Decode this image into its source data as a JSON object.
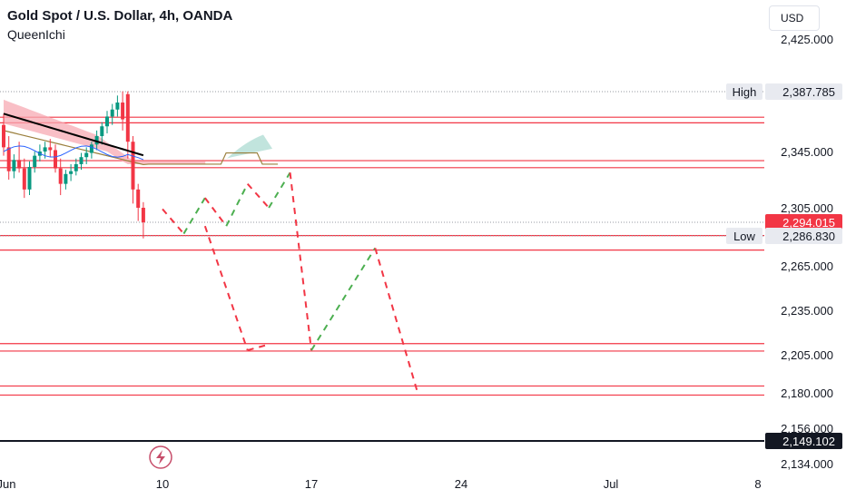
{
  "header": {
    "title": "Gold Spot / U.S. Dollar, 4h, OANDA",
    "indicator": "QueenIchi",
    "currency": "USD"
  },
  "colors": {
    "bull": "#089981",
    "bear": "#f23645",
    "cloud_red": "#f7a9b3",
    "cloud_green": "#a6d8cf",
    "sr_lines": "#f23645",
    "projection_up": "#4caf50",
    "projection_down": "#f23645",
    "ma_fast": "#000000",
    "ma_slow": "#2962ff",
    "kijun": "#9a7f3c"
  },
  "chart_data": {
    "type": "candlestick",
    "symbol": "Gold Spot / U.S. Dollar",
    "timeframe": "4h",
    "y_ticks": [
      "2,425.000",
      "2,345.000",
      "2,305.000",
      "2,265.000",
      "2,235.000",
      "2,205.000",
      "2,180.000",
      "2,156.000",
      "2,134.000"
    ],
    "y_tick_values": [
      2425,
      2345,
      2305,
      2265,
      2235,
      2205,
      2180,
      2156,
      2134
    ],
    "x_ticks": [
      "Jun",
      "10",
      "17",
      "24",
      "Jul",
      "8"
    ],
    "ylim": [
      2125,
      2440
    ],
    "badges": [
      {
        "label": "High",
        "value_text": "2,387.785",
        "value": 2387.785,
        "style": "light"
      },
      {
        "label": "",
        "value_text": "2,294.015",
        "value": 2294.015,
        "style": "red"
      },
      {
        "label": "Low",
        "value_text": "2,286.830",
        "value": 2286.83,
        "style": "light"
      },
      {
        "label": "",
        "value_text": "2,149.102",
        "value": 2149.102,
        "style": "dark"
      }
    ],
    "price_levels": [
      {
        "top": 2369.5,
        "bottom": 2365.5
      },
      {
        "top": 2338.5,
        "bottom": 2333.5
      },
      {
        "top": 2287.0,
        "bottom": 2276.5
      },
      {
        "top": 2212.5,
        "bottom": 2207.5
      },
      {
        "top": 2184.5,
        "bottom": 2178.5
      }
    ],
    "candles": [
      [
        2364,
        2372,
        2342,
        2348
      ],
      [
        2348,
        2356,
        2325,
        2331
      ],
      [
        2331,
        2343,
        2326,
        2339
      ],
      [
        2339,
        2352,
        2330,
        2333
      ],
      [
        2333,
        2340,
        2312,
        2318
      ],
      [
        2318,
        2338,
        2314,
        2334
      ],
      [
        2334,
        2345,
        2330,
        2342
      ],
      [
        2342,
        2350,
        2338,
        2345
      ],
      [
        2345,
        2352,
        2340,
        2348
      ],
      [
        2348,
        2354,
        2341,
        2346
      ],
      [
        2346,
        2350,
        2330,
        2333
      ],
      [
        2333,
        2340,
        2314,
        2322
      ],
      [
        2322,
        2332,
        2318,
        2329
      ],
      [
        2329,
        2336,
        2324,
        2331
      ],
      [
        2331,
        2340,
        2328,
        2336
      ],
      [
        2336,
        2344,
        2332,
        2341
      ],
      [
        2341,
        2348,
        2336,
        2344
      ],
      [
        2344,
        2352,
        2340,
        2350
      ],
      [
        2350,
        2360,
        2346,
        2356
      ],
      [
        2356,
        2366,
        2350,
        2363
      ],
      [
        2363,
        2374,
        2358,
        2370
      ],
      [
        2370,
        2379,
        2364,
        2375
      ],
      [
        2375,
        2385,
        2370,
        2380
      ],
      [
        2380,
        2388,
        2360,
        2368
      ],
      [
        2386,
        2388,
        2340,
        2352
      ],
      [
        2352,
        2356,
        2308,
        2318
      ],
      [
        2318,
        2322,
        2295,
        2305
      ],
      [
        2305,
        2309,
        2285,
        2294
      ]
    ],
    "projection_path": [
      {
        "x": "Jun 10",
        "y": 2304,
        "dir": "down"
      },
      {
        "x": "Jun 11",
        "y": 2288,
        "dir": "up"
      },
      {
        "x": "Jun 12",
        "y": 2312,
        "dir": "down"
      },
      {
        "x": "Jun 13",
        "y": 2292,
        "dir": "up"
      },
      {
        "x": "Jun 14",
        "y": 2322,
        "dir": "down"
      },
      {
        "x": "Jun 15",
        "y": 2305,
        "dir": "up"
      },
      {
        "x": "Jun 16",
        "y": 2330,
        "dir": "down"
      },
      {
        "x": "Jun 17",
        "y": 2208,
        "dir": "up"
      },
      {
        "x": "Jun 20",
        "y": 2278,
        "dir": "down"
      },
      {
        "x": "Jun 22",
        "y": 2180,
        "dir": "end"
      }
    ],
    "alt_projection_path": [
      {
        "x": "Jun 12",
        "y": 2292
      },
      {
        "x": "Jun 14",
        "y": 2208
      },
      {
        "x": "Jun 15",
        "y": 2212
      }
    ],
    "grid": false,
    "legend": "top-left"
  }
}
